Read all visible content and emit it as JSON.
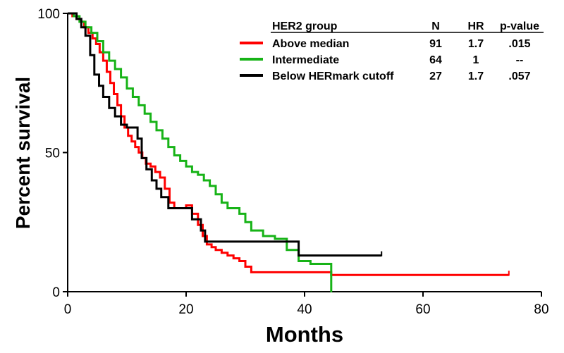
{
  "chart_data": {
    "type": "line",
    "xlabel": "Months",
    "ylabel": "Percent survival",
    "xlim": [
      0,
      80
    ],
    "ylim": [
      0,
      100
    ],
    "x_ticks": [
      0,
      20,
      40,
      60,
      80
    ],
    "y_ticks": [
      0,
      50,
      100
    ],
    "legend": {
      "headers": [
        "HER2 group",
        "N",
        "HR",
        "p-value"
      ],
      "rows": [
        {
          "group": "Above median",
          "n": "91",
          "hr": "1.7",
          "p": ".015",
          "color": "#ff0000"
        },
        {
          "group": "Intermediate",
          "n": "64",
          "hr": "1",
          "p": "--",
          "color": "#17b317"
        },
        {
          "group": "Below HERmark cutoff",
          "n": "27",
          "hr": "1.7",
          "p": ".057",
          "color": "#000000"
        }
      ]
    },
    "series": [
      {
        "name": "Above median",
        "color": "#ff0000",
        "x": [
          0,
          0.8,
          1.5,
          2.2,
          2.8,
          3.5,
          4.2,
          4.8,
          5.4,
          6.0,
          6.6,
          7.2,
          7.8,
          8.4,
          9.0,
          9.6,
          10.2,
          10.8,
          11.4,
          12.0,
          12.6,
          13.2,
          14.0,
          14.8,
          15.6,
          16.4,
          17.2,
          18.0,
          19.0,
          20.0,
          21.0,
          22.0,
          22.8,
          23.5,
          24.3,
          25.0,
          26.0,
          27.0,
          28.0,
          29.0,
          30.0,
          31.0,
          44.5,
          74.5
        ],
        "y": [
          100,
          99,
          98,
          97,
          95,
          93,
          91,
          89,
          86,
          83,
          79,
          75,
          71,
          67,
          63,
          59,
          56,
          54,
          52,
          50,
          48,
          46,
          45,
          43,
          41,
          37,
          32,
          30,
          30,
          31,
          28,
          24,
          20,
          17,
          16,
          15,
          14,
          13,
          12,
          11,
          9,
          7,
          6,
          6
        ]
      },
      {
        "name": "Intermediate",
        "color": "#17b317",
        "x": [
          0,
          1,
          2,
          3,
          4,
          5,
          6,
          7,
          8,
          9,
          10,
          11,
          12,
          13,
          14,
          15,
          16,
          17,
          18,
          19,
          20,
          21,
          22,
          23,
          24,
          25,
          26,
          27,
          28,
          29,
          30,
          31,
          33,
          35,
          37,
          39,
          41,
          44.5
        ],
        "y": [
          100,
          99,
          97,
          95,
          93,
          90,
          86,
          83,
          80,
          77,
          73,
          70,
          67,
          64,
          61,
          58,
          55,
          52,
          49,
          47,
          45,
          43,
          42,
          40,
          38,
          35,
          32,
          30,
          30,
          28,
          25,
          22,
          20,
          19,
          15,
          11,
          10,
          0
        ]
      },
      {
        "name": "Below HERmark cutoff",
        "color": "#000000",
        "x": [
          0,
          1.5,
          2.3,
          3.0,
          3.8,
          4.5,
          5.3,
          6.0,
          7.0,
          8.0,
          9.0,
          10.0,
          11.0,
          11.8,
          12.5,
          13.3,
          14.2,
          15.0,
          15.8,
          17.0,
          19.5,
          21.0,
          22.5,
          23.2,
          28.0,
          33.0,
          39.0,
          53.0
        ],
        "y": [
          100,
          98,
          95,
          92,
          85,
          78,
          74,
          70,
          66,
          63,
          60,
          59,
          59,
          55,
          48,
          44,
          40,
          37,
          34,
          30,
          30,
          26,
          22,
          18,
          18,
          18,
          13,
          13
        ]
      }
    ]
  }
}
